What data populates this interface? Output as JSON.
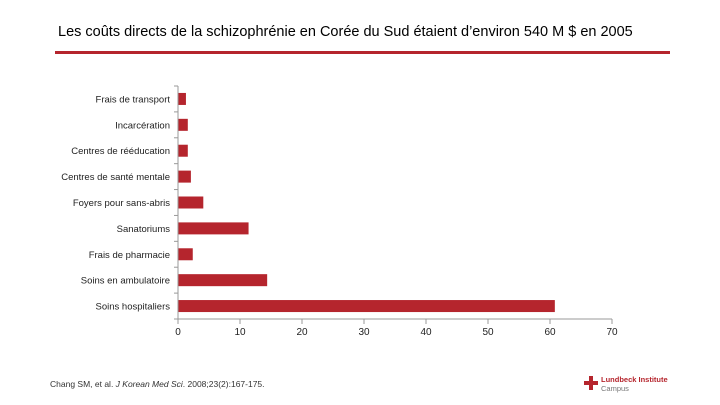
{
  "title": "Les coûts directs de la schizophrénie en Corée du Sud étaient d’environ 540 M $ en 2005",
  "colors": {
    "accent": "#b5252d",
    "bar": "#b5252d"
  },
  "chart_data": {
    "type": "bar",
    "orientation": "horizontal",
    "categories": [
      "Frais de transport",
      "Incarcération",
      "Centres de rééducation",
      "Centres de santé mentale",
      "Foyers pour sans-abris",
      "Sanatoriums",
      "Frais de pharmacie",
      "Soins en ambulatoire",
      "Soins hospitaliers"
    ],
    "values": [
      1.2,
      1.5,
      1.5,
      2.0,
      4.0,
      11.3,
      2.3,
      14.3,
      60.7
    ],
    "xlim": [
      0,
      70
    ],
    "xticks": [
      0,
      10,
      20,
      30,
      40,
      50,
      60,
      70
    ],
    "title": "",
    "xlabel": "",
    "ylabel": "",
    "grid": false,
    "legend": "none"
  },
  "footer": {
    "citation_author": "Chang SM, et al. ",
    "citation_journal": "J Korean Med Sci",
    "citation_rest": ". 2008;23(2):167-175."
  },
  "logo": {
    "line1": "Lundbeck Institute",
    "line2": "Campus"
  }
}
